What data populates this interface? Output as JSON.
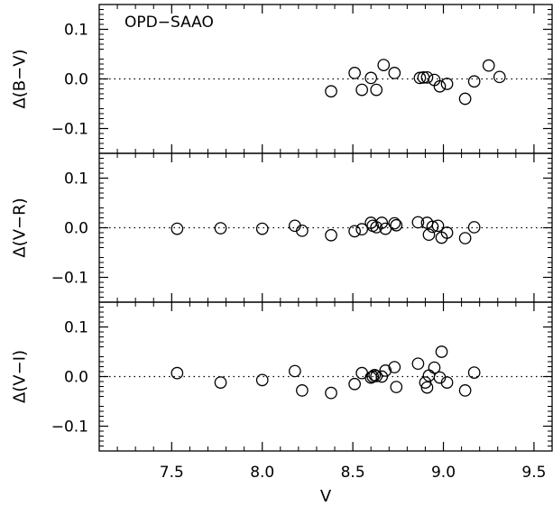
{
  "chart_data": [
    {
      "type": "scatter",
      "ylabel": "Δ(B−V)",
      "annotation": "OPD−SAAO",
      "ylim": [
        -0.15,
        0.15
      ],
      "yticks": [
        -0.1,
        0.0,
        0.1
      ],
      "ytick_labels": [
        "−0.1",
        "0.0",
        "0.1"
      ],
      "reference_line": 0.0,
      "points": [
        {
          "x": 8.38,
          "y": -0.025
        },
        {
          "x": 8.51,
          "y": 0.012
        },
        {
          "x": 8.55,
          "y": -0.022
        },
        {
          "x": 8.6,
          "y": 0.002
        },
        {
          "x": 8.63,
          "y": -0.022
        },
        {
          "x": 8.67,
          "y": 0.028
        },
        {
          "x": 8.73,
          "y": 0.012
        },
        {
          "x": 8.87,
          "y": 0.002
        },
        {
          "x": 8.89,
          "y": 0.003
        },
        {
          "x": 8.91,
          "y": 0.003
        },
        {
          "x": 8.95,
          "y": -0.002
        },
        {
          "x": 8.98,
          "y": -0.015
        },
        {
          "x": 9.02,
          "y": -0.01
        },
        {
          "x": 9.12,
          "y": -0.04
        },
        {
          "x": 9.17,
          "y": -0.005
        },
        {
          "x": 9.25,
          "y": 0.027
        },
        {
          "x": 9.31,
          "y": 0.004
        }
      ]
    },
    {
      "type": "scatter",
      "ylabel": "Δ(V−R)",
      "ylim": [
        -0.15,
        0.15
      ],
      "yticks": [
        -0.1,
        0.0,
        0.1
      ],
      "ytick_labels": [
        "−0.1",
        "0.0",
        "0.1"
      ],
      "reference_line": 0.0,
      "points": [
        {
          "x": 7.53,
          "y": -0.002
        },
        {
          "x": 7.77,
          "y": -0.001
        },
        {
          "x": 8.0,
          "y": -0.002
        },
        {
          "x": 8.18,
          "y": 0.004
        },
        {
          "x": 8.22,
          "y": -0.006
        },
        {
          "x": 8.38,
          "y": -0.015
        },
        {
          "x": 8.51,
          "y": -0.007
        },
        {
          "x": 8.55,
          "y": -0.003
        },
        {
          "x": 8.6,
          "y": 0.01
        },
        {
          "x": 8.61,
          "y": 0.004
        },
        {
          "x": 8.63,
          "y": 0.001
        },
        {
          "x": 8.66,
          "y": 0.01
        },
        {
          "x": 8.68,
          "y": -0.002
        },
        {
          "x": 8.73,
          "y": 0.009
        },
        {
          "x": 8.74,
          "y": 0.005
        },
        {
          "x": 8.86,
          "y": 0.011
        },
        {
          "x": 8.91,
          "y": 0.01
        },
        {
          "x": 8.92,
          "y": -0.014
        },
        {
          "x": 8.94,
          "y": 0.002
        },
        {
          "x": 8.97,
          "y": 0.004
        },
        {
          "x": 8.99,
          "y": -0.02
        },
        {
          "x": 9.02,
          "y": -0.01
        },
        {
          "x": 9.12,
          "y": -0.021
        },
        {
          "x": 9.17,
          "y": 0.001
        }
      ]
    },
    {
      "type": "scatter",
      "ylabel": "Δ(V−I)",
      "ylim": [
        -0.15,
        0.15
      ],
      "yticks": [
        -0.1,
        0.0,
        0.1
      ],
      "ytick_labels": [
        "−0.1",
        "0.0",
        "0.1"
      ],
      "reference_line": 0.0,
      "xlabel": "V",
      "xlim": [
        7.1,
        9.6
      ],
      "xticks": [
        7.5,
        8.0,
        8.5,
        9.0,
        9.5
      ],
      "xtick_labels": [
        "7.5",
        "8.0",
        "8.5",
        "9.0",
        "9.5"
      ],
      "points": [
        {
          "x": 7.53,
          "y": 0.007
        },
        {
          "x": 7.77,
          "y": -0.012
        },
        {
          "x": 8.0,
          "y": -0.007
        },
        {
          "x": 8.18,
          "y": 0.011
        },
        {
          "x": 8.22,
          "y": -0.028
        },
        {
          "x": 8.38,
          "y": -0.033
        },
        {
          "x": 8.51,
          "y": -0.015
        },
        {
          "x": 8.55,
          "y": 0.007
        },
        {
          "x": 8.6,
          "y": -0.002
        },
        {
          "x": 8.61,
          "y": 0.0
        },
        {
          "x": 8.62,
          "y": 0.003
        },
        {
          "x": 8.63,
          "y": 0.001
        },
        {
          "x": 8.66,
          "y": 0.0
        },
        {
          "x": 8.68,
          "y": 0.012
        },
        {
          "x": 8.73,
          "y": 0.019
        },
        {
          "x": 8.74,
          "y": -0.021
        },
        {
          "x": 8.86,
          "y": 0.026
        },
        {
          "x": 8.9,
          "y": -0.012
        },
        {
          "x": 8.91,
          "y": -0.022
        },
        {
          "x": 8.92,
          "y": 0.002
        },
        {
          "x": 8.95,
          "y": 0.018
        },
        {
          "x": 8.98,
          "y": -0.002
        },
        {
          "x": 8.99,
          "y": 0.05
        },
        {
          "x": 9.02,
          "y": -0.012
        },
        {
          "x": 9.12,
          "y": -0.028
        },
        {
          "x": 9.17,
          "y": 0.008
        }
      ]
    }
  ]
}
